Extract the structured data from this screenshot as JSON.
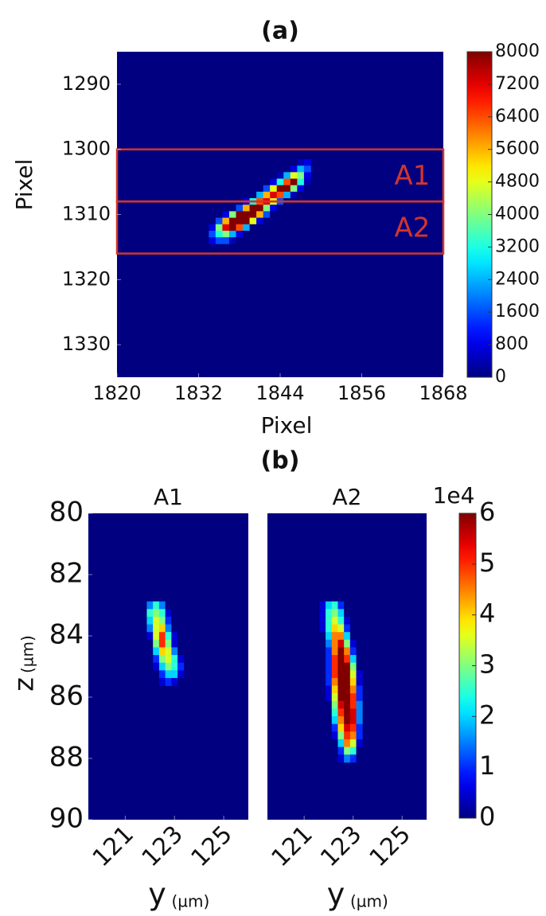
{
  "chart_data": [
    {
      "type": "heatmap",
      "title": "(a)",
      "xlabel": "Pixel",
      "ylabel": "Pixel",
      "xlim": [
        1820,
        1868
      ],
      "xticks": [
        1820,
        1832,
        1844,
        1856,
        1868
      ],
      "ylim": [
        1285,
        1335
      ],
      "y_inverted": true,
      "yticks": [
        1290,
        1300,
        1310,
        1320,
        1330
      ],
      "colormap": "jet",
      "clim": [
        0,
        8000
      ],
      "cticks": [
        0,
        800,
        1600,
        2400,
        3200,
        4000,
        4800,
        5600,
        6400,
        7200,
        8000
      ],
      "regions": [
        {
          "label": "A1",
          "y": [
            1300,
            1308
          ],
          "color": "#d2352a"
        },
        {
          "label": "A2",
          "y": [
            1308,
            1316
          ],
          "color": "#d2352a"
        }
      ],
      "x": [
        1834,
        1835,
        1836,
        1837,
        1838,
        1839,
        1840,
        1841,
        1842,
        1843,
        1844,
        1845,
        1846,
        1847,
        1848
      ],
      "y": [
        1302,
        1303,
        1304,
        1305,
        1306,
        1307,
        1308,
        1309,
        1310,
        1311,
        1312,
        1313,
        1314
      ],
      "z": [
        [
          0,
          0,
          0,
          0,
          0,
          0,
          0,
          0,
          0,
          0,
          0,
          0,
          0,
          400,
          800
        ],
        [
          0,
          0,
          0,
          0,
          0,
          0,
          0,
          0,
          0,
          0,
          0,
          0,
          800,
          2400,
          1600
        ],
        [
          0,
          0,
          0,
          0,
          0,
          0,
          0,
          0,
          0,
          0,
          400,
          2400,
          4800,
          4000,
          800
        ],
        [
          0,
          0,
          0,
          0,
          0,
          0,
          0,
          0,
          0,
          800,
          3200,
          6400,
          8000,
          3200,
          400
        ],
        [
          0,
          0,
          0,
          0,
          0,
          0,
          0,
          0,
          1600,
          4800,
          8000,
          8000,
          4000,
          800,
          0
        ],
        [
          0,
          0,
          0,
          0,
          0,
          0,
          0,
          2400,
          5600,
          7200,
          6400,
          2400,
          400,
          0,
          0
        ],
        [
          0,
          0,
          0,
          0,
          0,
          800,
          3200,
          6400,
          7200,
          4800,
          1600,
          0,
          0,
          0,
          0
        ],
        [
          0,
          0,
          0,
          0,
          1600,
          5600,
          8000,
          8000,
          4000,
          800,
          0,
          0,
          0,
          0,
          0
        ],
        [
          0,
          0,
          800,
          4000,
          8000,
          8000,
          8000,
          5600,
          1600,
          0,
          0,
          0,
          0,
          0,
          0
        ],
        [
          0,
          1600,
          5600,
          8000,
          8000,
          8000,
          4800,
          800,
          0,
          0,
          0,
          0,
          0,
          0,
          0
        ],
        [
          800,
          4000,
          7200,
          8000,
          6400,
          2400,
          0,
          0,
          0,
          0,
          0,
          0,
          0,
          0,
          0
        ],
        [
          1600,
          3200,
          4000,
          2400,
          800,
          0,
          0,
          0,
          0,
          0,
          0,
          0,
          0,
          0,
          0
        ],
        [
          800,
          1600,
          1600,
          400,
          0,
          0,
          0,
          0,
          0,
          0,
          0,
          0,
          0,
          0,
          0
        ]
      ]
    },
    {
      "type": "heatmap-pair",
      "title": "(b)",
      "xlabel": "y",
      "xlabel_unit": "(µm)",
      "ylabel": "z",
      "ylabel_unit": "(µm)",
      "xlim": [
        119.5,
        126
      ],
      "xticks": [
        121,
        123,
        125
      ],
      "ylim": [
        80,
        90
      ],
      "y_inverted": true,
      "yticks": [
        80,
        82,
        84,
        86,
        88,
        90
      ],
      "colormap": "jet",
      "clim": [
        0,
        6
      ],
      "cticks": [
        0,
        1,
        2,
        3,
        4,
        5,
        6
      ],
      "colorbar_scale": "1e4",
      "panels": [
        {
          "title": "A1",
          "x": [
            122,
            122.25,
            122.5,
            122.75,
            123,
            123.25
          ],
          "y": [
            83,
            83.25,
            83.5,
            83.75,
            84,
            84.25,
            84.5,
            84.75,
            85,
            85.25,
            85.5
          ],
          "z": [
            [
              1.5,
              2.5,
              1.5,
              0,
              0,
              0
            ],
            [
              2.5,
              3,
              2.5,
              0.5,
              0,
              0
            ],
            [
              2,
              3.5,
              3,
              1,
              0,
              0
            ],
            [
              1.5,
              3.5,
              4,
              1.5,
              0,
              0
            ],
            [
              0.5,
              3.5,
              5,
              2.5,
              0.5,
              0
            ],
            [
              0,
              3,
              5,
              3,
              0.5,
              0
            ],
            [
              0,
              2,
              4,
              3.5,
              1.5,
              0
            ],
            [
              0,
              1,
              3,
              3.5,
              2.5,
              0.5
            ],
            [
              0,
              0.5,
              2,
              3,
              2.5,
              1
            ],
            [
              0,
              0,
              1,
              2,
              2,
              0.5
            ],
            [
              0,
              0,
              0.5,
              1,
              0.5,
              0
            ]
          ]
        },
        {
          "title": "A2",
          "x": [
            121.75,
            122,
            122.25,
            122.5,
            122.75,
            123,
            123.25
          ],
          "y": [
            83,
            83.25,
            83.5,
            83.75,
            84,
            84.25,
            84.5,
            84.75,
            85,
            85.25,
            85.5,
            85.75,
            86,
            86.25,
            86.5,
            86.75,
            87,
            87.25,
            87.5,
            87.75,
            88
          ],
          "z": [
            [
              0.5,
              2,
              2.5,
              1,
              0,
              0,
              0
            ],
            [
              0.5,
              2.5,
              3,
              2,
              0,
              0,
              0
            ],
            [
              0.5,
              2.5,
              3.5,
              2.5,
              0.5,
              0,
              0
            ],
            [
              0.5,
              2.5,
              4,
              3.5,
              1,
              0,
              0
            ],
            [
              0,
              2,
              4.5,
              4.5,
              2,
              0,
              0
            ],
            [
              0,
              1.5,
              4.5,
              5.5,
              3,
              0.5,
              0
            ],
            [
              0,
              1,
              4.5,
              6,
              4.5,
              1,
              0
            ],
            [
              0,
              1,
              5,
              6,
              5,
              2,
              0
            ],
            [
              0,
              1,
              5,
              6,
              6,
              3,
              0
            ],
            [
              0,
              1,
              5,
              6,
              6,
              3.5,
              0.5
            ],
            [
              0,
              1,
              4.5,
              6,
              6,
              4,
              0.5
            ],
            [
              0,
              0.5,
              4,
              6,
              6,
              4.5,
              1
            ],
            [
              0,
              0.5,
              3.5,
              6,
              6,
              5,
              1
            ],
            [
              0,
              0,
              3,
              5.5,
              6,
              5,
              1.5
            ],
            [
              0,
              0,
              2.5,
              5,
              6,
              5.5,
              1.5
            ],
            [
              0,
              0,
              2,
              4.5,
              6,
              5.5,
              1.5
            ],
            [
              0,
              0,
              1,
              4,
              5.5,
              5,
              1
            ],
            [
              0,
              0,
              0.5,
              3,
              5,
              4.5,
              1
            ],
            [
              0,
              0,
              0,
              2,
              4.5,
              3.5,
              0.5
            ],
            [
              0,
              0,
              0,
              1,
              3,
              2.5,
              0
            ],
            [
              0,
              0,
              0,
              0.5,
              1.5,
              1,
              0
            ]
          ]
        }
      ]
    }
  ]
}
